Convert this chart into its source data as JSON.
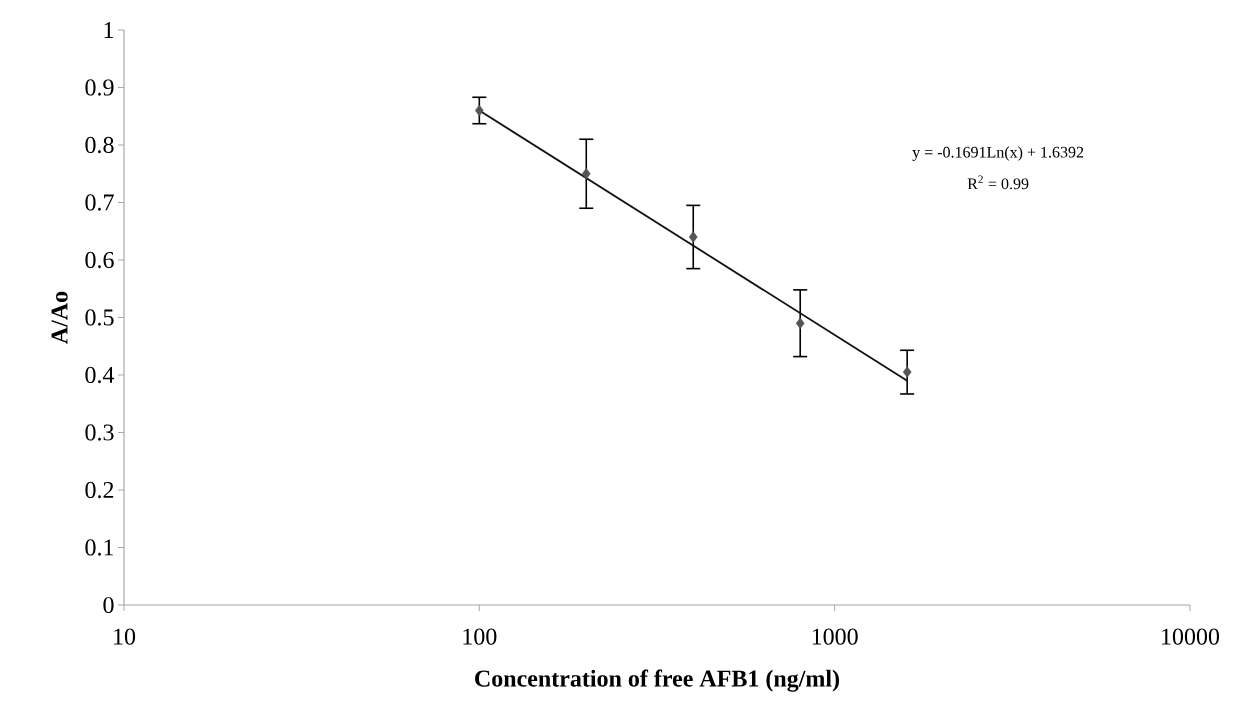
{
  "chart_data": {
    "type": "scatter",
    "xlabel": "Concentration of free AFB1 (ng/ml)",
    "ylabel": "A/Ao",
    "annotations": [
      "y = -0.1691Ln(x) + 1.6392",
      "R$^{2}$ = 0.99"
    ],
    "series": [
      {
        "color": "#555555",
        "x": [
          100,
          200,
          400,
          800,
          1600
        ],
        "values": [
          0.86,
          0.75,
          0.64,
          0.49,
          0.405
        ],
        "errors": [
          0.023,
          0.06,
          0.055,
          0.058,
          0.038
        ],
        "marker": "diamond"
      },
      {
        "type": "line",
        "color": "#111111",
        "x": [
          100,
          1600
        ],
        "values": [
          0.86,
          0.39
        ],
        "marker": "none",
        "line_style": "solid"
      }
    ],
    "log": "x",
    "xlim": [
      10,
      10000
    ],
    "xticks": [
      10,
      100,
      1000,
      10000
    ],
    "ylim": [
      0,
      1
    ],
    "yticks": [
      0,
      0.1,
      0.2,
      0.3,
      0.4,
      0.5,
      0.6,
      0.7,
      0.8,
      0.9,
      1
    ],
    "grid": false
  }
}
